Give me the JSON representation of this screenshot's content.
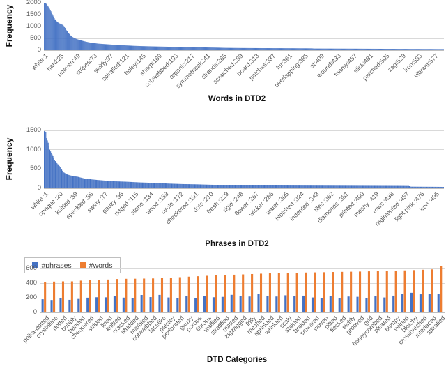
{
  "chart_data": [
    {
      "type": "bar",
      "title": "Words in DTD2",
      "ylabel": "Frequency",
      "bar_color": "#4472C4",
      "n_bars": 590,
      "ylim": [
        0,
        2000
      ],
      "yticks": [
        0,
        500,
        1000,
        1500,
        2000
      ],
      "xtick_step": 24,
      "xtick_labels": [
        "white:1",
        "hard:25",
        "uneven:49",
        "stripes:73",
        "swirly:97",
        "spiralled:121",
        "holey:145",
        "sharp:169",
        "cobwebbed:193",
        "organic:217",
        "symmetrical:241",
        "strands:265",
        "scratched:289",
        "board:313",
        "patches:337",
        "fur:361",
        "overlapping:385",
        "at:409",
        "wound:433",
        "foamy:457",
        "slick:481",
        "patched:505",
        "zag:529",
        "iron:553",
        "vibrant:577"
      ],
      "profile_points": [
        [
          0,
          2000
        ],
        [
          2,
          1985
        ],
        [
          4,
          1930
        ],
        [
          6,
          1840
        ],
        [
          8,
          1750
        ],
        [
          10,
          1640
        ],
        [
          12,
          1520
        ],
        [
          14,
          1400
        ],
        [
          16,
          1300
        ],
        [
          18,
          1230
        ],
        [
          20,
          1180
        ],
        [
          22,
          1140
        ],
        [
          24,
          1110
        ],
        [
          26,
          1085
        ],
        [
          28,
          1060
        ],
        [
          31,
          940
        ],
        [
          33,
          840
        ],
        [
          35,
          765
        ],
        [
          38,
          650
        ],
        [
          41,
          570
        ],
        [
          44,
          520
        ],
        [
          48,
          470
        ],
        [
          53,
          425
        ],
        [
          59,
          378
        ],
        [
          66,
          332
        ],
        [
          72,
          305
        ],
        [
          80,
          276
        ],
        [
          90,
          255
        ],
        [
          100,
          236
        ],
        [
          110,
          221
        ],
        [
          120,
          203
        ],
        [
          131,
          187
        ],
        [
          145,
          172
        ],
        [
          165,
          158
        ],
        [
          185,
          146
        ],
        [
          200,
          138
        ],
        [
          220,
          126
        ],
        [
          234,
          119
        ],
        [
          250,
          112
        ],
        [
          268,
          99
        ],
        [
          290,
          93
        ],
        [
          316,
          89
        ],
        [
          340,
          86
        ],
        [
          365,
          83
        ],
        [
          380,
          80
        ],
        [
          395,
          78
        ],
        [
          398,
          70
        ],
        [
          420,
          68
        ],
        [
          440,
          66
        ],
        [
          460,
          64
        ],
        [
          480,
          61
        ],
        [
          500,
          59
        ],
        [
          520,
          57
        ],
        [
          540,
          54
        ],
        [
          560,
          52
        ],
        [
          577,
          50
        ],
        [
          589,
          48
        ]
      ]
    },
    {
      "type": "bar",
      "title": "Phrases in DTD2",
      "ylabel": "Frequency",
      "bar_color": "#4472C4",
      "n_bars": 505,
      "ylim": [
        0,
        1500
      ],
      "yticks": [
        0,
        500,
        1000,
        1500
      ],
      "xtick_step": 19,
      "xtick_labels": [
        "white :1",
        "opaque :20",
        "knitted :39",
        "speckled :58",
        "swirly :77",
        "gauzy :96",
        "ridged :115",
        "stone :134",
        "wood :153",
        "circle :172",
        "checkered :191",
        "dots :210",
        "fresh :229",
        "rigid :248",
        "flower :267",
        "wicker :286",
        "water :305",
        "blotched :324",
        "indented :343",
        "tiles :362",
        "diamonds :381",
        "printed :400",
        "meshy :419",
        "rows :438",
        "regimented :457",
        "light pink :476",
        "iron :495"
      ],
      "profile_points": [
        [
          0,
          1480
        ],
        [
          1,
          1470
        ],
        [
          2,
          1450
        ],
        [
          3,
          1300
        ],
        [
          5,
          1180
        ],
        [
          7,
          1000
        ],
        [
          9,
          910
        ],
        [
          11,
          840
        ],
        [
          13,
          730
        ],
        [
          16,
          650
        ],
        [
          19,
          580
        ],
        [
          24,
          424
        ],
        [
          28,
          365
        ],
        [
          33,
          333
        ],
        [
          38,
          310
        ],
        [
          42,
          300
        ],
        [
          50,
          256
        ],
        [
          60,
          230
        ],
        [
          68,
          214
        ],
        [
          86,
          183
        ],
        [
          104,
          170
        ],
        [
          121,
          152
        ],
        [
          139,
          140
        ],
        [
          157,
          122
        ],
        [
          174,
          110
        ],
        [
          192,
          103
        ],
        [
          210,
          92
        ],
        [
          227,
          86
        ],
        [
          245,
          80
        ],
        [
          270,
          75
        ],
        [
          300,
          72
        ],
        [
          330,
          70
        ],
        [
          360,
          68
        ],
        [
          390,
          66
        ],
        [
          420,
          64
        ],
        [
          450,
          62
        ],
        [
          460,
          60
        ],
        [
          463,
          42
        ],
        [
          475,
          40
        ],
        [
          494,
          38
        ],
        [
          504,
          36
        ]
      ]
    },
    {
      "type": "grouped-bar",
      "title": "DTD Categories",
      "ylim": [
        0,
        700
      ],
      "yticks": [
        0,
        200,
        400,
        600
      ],
      "categories": [
        "polka-dotted",
        "crystalline",
        "dotted",
        "bubbly",
        "banded",
        "chequered",
        "striped",
        "lined",
        "knitted",
        "cracked",
        "studded",
        "marbled",
        "cobwebbed",
        "lacelike",
        "paisley",
        "perforated",
        "gauzy",
        "porous",
        "fibrous",
        "waffled",
        "stratified",
        "matted",
        "zigzagged",
        "frilly",
        "meshed",
        "sprinkled",
        "wrinkled",
        "scaly",
        "stained",
        "braided",
        "smeared",
        "woven",
        "pitted",
        "flecked",
        "swirly",
        "grooved",
        "grid",
        "honeycombed",
        "pleated",
        "bumpy",
        "veined",
        "blotchy",
        "crosshatched",
        "interlaced",
        "spiralled"
      ],
      "series": [
        {
          "name": "#phrases",
          "color": "#4472C4",
          "values": [
            180,
            170,
            196,
            172,
            184,
            201,
            207,
            206,
            219,
            202,
            195,
            238,
            209,
            239,
            204,
            199,
            219,
            199,
            226,
            207,
            212,
            240,
            228,
            217,
            249,
            224,
            217,
            234,
            224,
            229,
            204,
            194,
            227,
            199,
            217,
            213,
            199,
            227,
            204,
            229,
            249,
            268,
            247,
            249,
            254
          ]
        },
        {
          "name": "#words",
          "color": "#ED7D31",
          "values": [
            412,
            421,
            424,
            424,
            434,
            441,
            444,
            449,
            456,
            459,
            460,
            462,
            464,
            470,
            476,
            481,
            488,
            494,
            500,
            505,
            510,
            515,
            519,
            524,
            529,
            533,
            536,
            539,
            542,
            545,
            547,
            549,
            552,
            554,
            556,
            558,
            561,
            564,
            567,
            570,
            574,
            578,
            583,
            588,
            632
          ]
        }
      ],
      "legend_position": "top-left"
    }
  ],
  "colors": {
    "bar_blue": "#4472C4",
    "bar_orange": "#ED7D31",
    "gridline": "#D9D9D9",
    "axis_line": "#BFBFBF",
    "tick_text": "#595959",
    "title_text": "#111111"
  }
}
